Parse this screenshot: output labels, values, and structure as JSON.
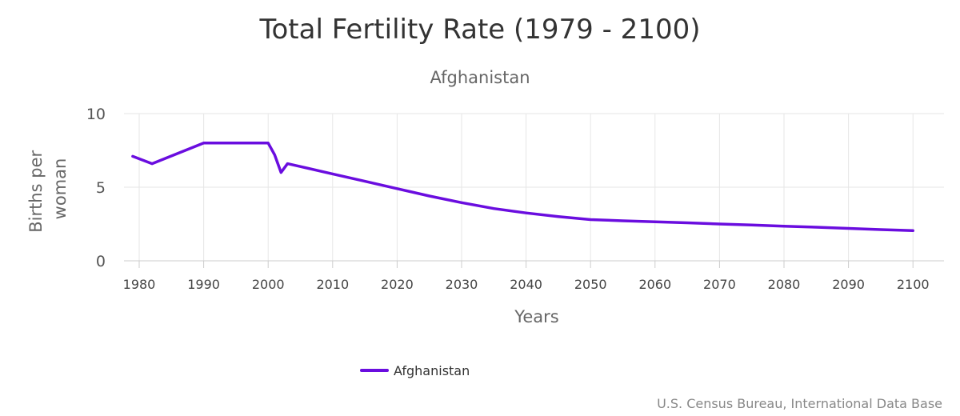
{
  "chart_data": {
    "type": "line",
    "title": "Total Fertility Rate (1979 - 2100)",
    "subtitle": "Afghanistan",
    "xlabel": "Years",
    "ylabel": "Births per woman",
    "ylabel_lines": [
      "Births per",
      "woman"
    ],
    "xlim": [
      1979,
      2100
    ],
    "ylim": [
      0,
      10
    ],
    "x_ticks": [
      1980,
      1990,
      2000,
      2010,
      2020,
      2030,
      2040,
      2050,
      2060,
      2070,
      2080,
      2090,
      2100
    ],
    "y_ticks": [
      0,
      5,
      10
    ],
    "grid": true,
    "legend_position": "bottom",
    "series": [
      {
        "name": "Afghanistan",
        "color": "#6a0ddf",
        "x": [
          1979,
          1982,
          1990,
          1995,
          2000,
          2001,
          2002,
          2003,
          2005,
          2010,
          2015,
          2020,
          2025,
          2030,
          2035,
          2040,
          2045,
          2050,
          2055,
          2060,
          2065,
          2070,
          2075,
          2080,
          2085,
          2090,
          2095,
          2100
        ],
        "y": [
          7.1,
          6.6,
          8.0,
          8.0,
          8.0,
          7.2,
          6.0,
          6.6,
          6.4,
          5.9,
          5.4,
          4.9,
          4.4,
          3.95,
          3.55,
          3.25,
          3.0,
          2.8,
          2.72,
          2.65,
          2.58,
          2.5,
          2.43,
          2.35,
          2.28,
          2.2,
          2.12,
          2.05
        ]
      }
    ]
  },
  "credit": "U.S. Census Bureau, International Data Base"
}
